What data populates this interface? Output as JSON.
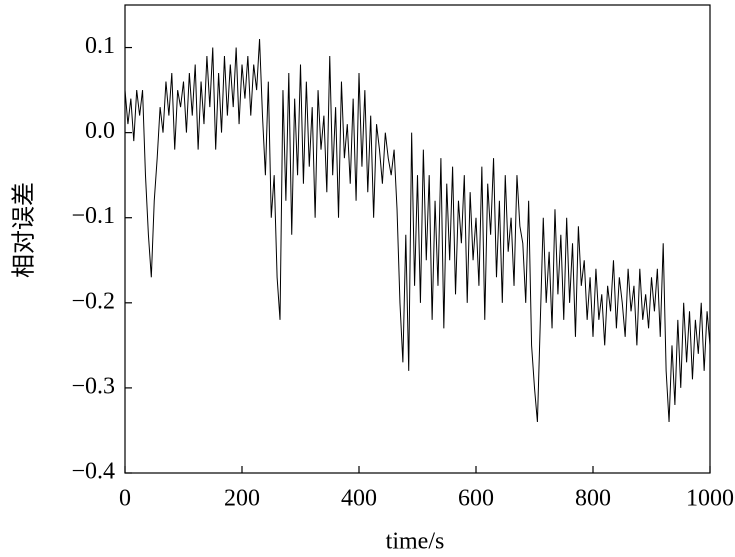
{
  "chart_data": {
    "type": "line",
    "xlabel": "time/s",
    "ylabel": "相对误差",
    "x": [
      0,
      5,
      10,
      15,
      20,
      25,
      30,
      35,
      40,
      45,
      50,
      55,
      60,
      65,
      70,
      75,
      80,
      85,
      90,
      95,
      100,
      105,
      110,
      115,
      120,
      125,
      130,
      135,
      140,
      145,
      150,
      155,
      160,
      165,
      170,
      175,
      180,
      185,
      190,
      195,
      200,
      205,
      210,
      215,
      220,
      225,
      230,
      235,
      240,
      245,
      250,
      255,
      260,
      265,
      270,
      275,
      280,
      285,
      290,
      295,
      300,
      305,
      310,
      315,
      320,
      325,
      330,
      335,
      340,
      345,
      350,
      355,
      360,
      365,
      370,
      375,
      380,
      385,
      390,
      395,
      400,
      405,
      410,
      415,
      420,
      425,
      430,
      435,
      440,
      445,
      450,
      455,
      460,
      465,
      470,
      475,
      480,
      485,
      490,
      495,
      500,
      505,
      510,
      515,
      520,
      525,
      530,
      535,
      540,
      545,
      550,
      555,
      560,
      565,
      570,
      575,
      580,
      585,
      590,
      595,
      600,
      605,
      610,
      615,
      620,
      625,
      630,
      635,
      640,
      645,
      650,
      655,
      660,
      665,
      670,
      675,
      680,
      685,
      690,
      695,
      700,
      705,
      710,
      715,
      720,
      725,
      730,
      735,
      740,
      745,
      750,
      755,
      760,
      765,
      770,
      775,
      780,
      785,
      790,
      795,
      800,
      805,
      810,
      815,
      820,
      825,
      830,
      835,
      840,
      845,
      850,
      855,
      860,
      865,
      870,
      875,
      880,
      885,
      890,
      895,
      900,
      905,
      910,
      915,
      920,
      925,
      930,
      935,
      940,
      945,
      950,
      955,
      960,
      965,
      970,
      975,
      980,
      985,
      990,
      995,
      1000
    ],
    "values": [
      0.05,
      0.01,
      0.04,
      -0.01,
      0.05,
      0.02,
      0.05,
      -0.05,
      -0.12,
      -0.17,
      -0.08,
      -0.03,
      0.03,
      0.0,
      0.06,
      0.02,
      0.07,
      -0.02,
      0.05,
      0.03,
      0.06,
      0.0,
      0.07,
      0.02,
      0.08,
      -0.02,
      0.06,
      0.01,
      0.09,
      0.03,
      0.1,
      -0.02,
      0.07,
      0.0,
      0.09,
      0.02,
      0.08,
      0.03,
      0.1,
      0.01,
      0.08,
      0.04,
      0.09,
      0.02,
      0.08,
      0.05,
      0.11,
      0.02,
      -0.05,
      0.06,
      -0.1,
      -0.05,
      -0.17,
      -0.22,
      0.05,
      -0.08,
      0.07,
      -0.12,
      0.04,
      -0.05,
      0.08,
      -0.06,
      0.06,
      -0.04,
      0.03,
      -0.1,
      0.05,
      -0.02,
      0.02,
      -0.07,
      0.09,
      -0.05,
      0.03,
      -0.1,
      0.06,
      -0.03,
      0.01,
      -0.06,
      0.04,
      -0.08,
      0.07,
      -0.04,
      0.05,
      -0.07,
      0.02,
      -0.1,
      0.01,
      -0.02,
      -0.06,
      0.0,
      -0.03,
      -0.05,
      -0.02,
      -0.09,
      -0.2,
      -0.27,
      -0.12,
      -0.28,
      0.0,
      -0.18,
      -0.05,
      -0.2,
      -0.02,
      -0.15,
      -0.05,
      -0.22,
      -0.08,
      -0.18,
      -0.03,
      -0.23,
      -0.06,
      -0.15,
      -0.04,
      -0.19,
      -0.08,
      -0.13,
      -0.05,
      -0.2,
      -0.07,
      -0.15,
      -0.1,
      -0.18,
      -0.04,
      -0.22,
      -0.06,
      -0.12,
      -0.03,
      -0.17,
      -0.08,
      -0.2,
      -0.05,
      -0.14,
      -0.1,
      -0.18,
      -0.05,
      -0.11,
      -0.13,
      -0.2,
      -0.08,
      -0.25,
      -0.3,
      -0.34,
      -0.22,
      -0.1,
      -0.2,
      -0.14,
      -0.23,
      -0.09,
      -0.19,
      -0.12,
      -0.22,
      -0.1,
      -0.2,
      -0.13,
      -0.24,
      -0.11,
      -0.18,
      -0.15,
      -0.22,
      -0.17,
      -0.24,
      -0.16,
      -0.22,
      -0.19,
      -0.25,
      -0.18,
      -0.21,
      -0.15,
      -0.23,
      -0.17,
      -0.2,
      -0.24,
      -0.16,
      -0.21,
      -0.18,
      -0.25,
      -0.16,
      -0.22,
      -0.19,
      -0.23,
      -0.17,
      -0.21,
      -0.16,
      -0.24,
      -0.13,
      -0.28,
      -0.34,
      -0.25,
      -0.32,
      -0.22,
      -0.3,
      -0.2,
      -0.27,
      -0.21,
      -0.29,
      -0.22,
      -0.26,
      -0.2,
      -0.28,
      -0.21,
      -0.25
    ],
    "color": "#000000",
    "xlim": [
      0,
      1000
    ],
    "xticks": [
      0,
      200,
      400,
      600,
      800,
      1000
    ],
    "ylim": [
      -0.4,
      0.15
    ],
    "yticks": [
      {
        "value": -0.4,
        "label": "−0.4"
      },
      {
        "value": -0.3,
        "label": "−0.3"
      },
      {
        "value": -0.2,
        "label": "−0.2"
      },
      {
        "value": -0.1,
        "label": "−0.1"
      },
      {
        "value": 0,
        "label": "0.0"
      },
      0.1
    ],
    "grid": false
  }
}
